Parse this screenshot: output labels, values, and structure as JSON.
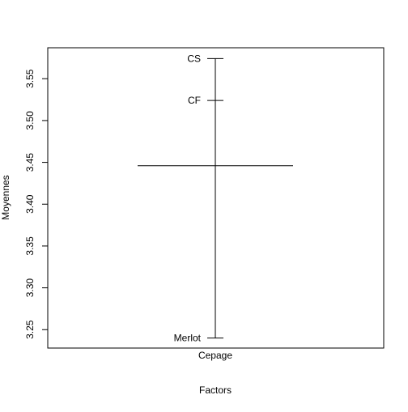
{
  "chart_data": {
    "type": "scatter",
    "title": "",
    "xlabel": "Factors",
    "ylabel": "Moyennes",
    "ylim": [
      3.228,
      3.587
    ],
    "yticks": [
      3.25,
      3.3,
      3.35,
      3.4,
      3.45,
      3.5,
      3.55
    ],
    "ytick_labels": [
      "3.25",
      "3.30",
      "3.35",
      "3.40",
      "3.45",
      "3.50",
      "3.55"
    ],
    "factor_label": "Cepage",
    "grand_mean": 3.446,
    "levels": [
      {
        "label": "CS",
        "value": 3.574
      },
      {
        "label": "CF",
        "value": 3.524
      },
      {
        "label": "Merlot",
        "value": 3.24
      }
    ],
    "grid": false,
    "legend": "none"
  }
}
